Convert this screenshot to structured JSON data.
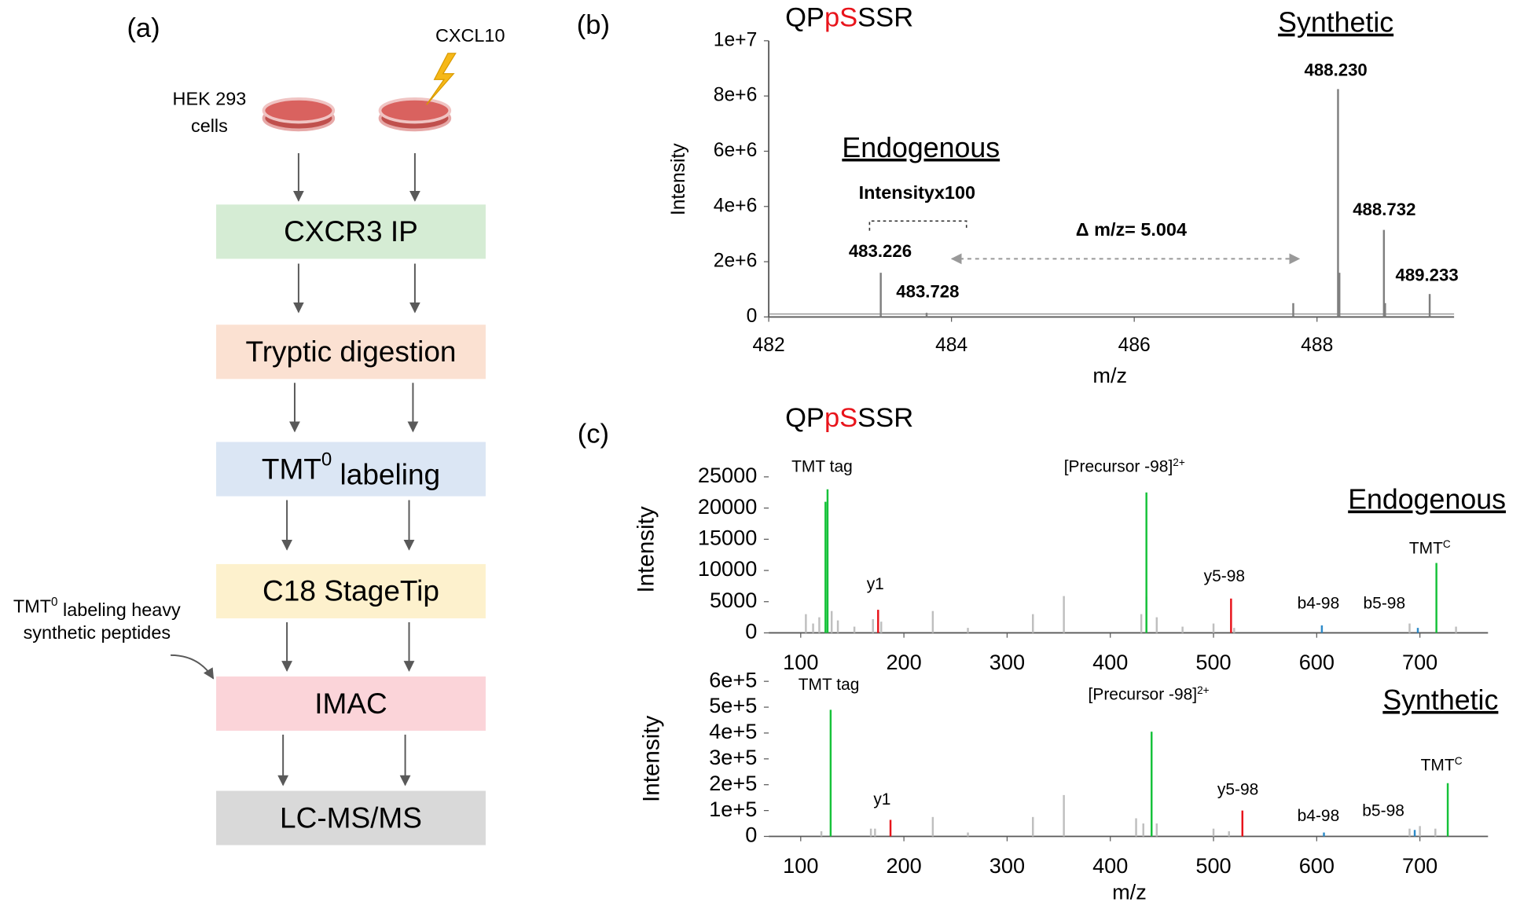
{
  "panel_a": {
    "label": "(a)",
    "cells_label": [
      "HEK 293",
      "cells"
    ],
    "stimulus": "CXCL10",
    "steps": [
      "CXCR3 IP",
      "Tryptic digestion",
      {
        "text": "TMT",
        "sup": "0",
        "rest": " labeling"
      },
      "C18 StageTip",
      "IMAC",
      "LC-MS/MS"
    ],
    "step_colors": [
      "#d5ecd4",
      "#fbe1d2",
      "#dbe6f4",
      "#fdf1cd",
      "#fbd4d9",
      "#d9d9d9"
    ],
    "note": [
      {
        "text": "TMT",
        "sup": "0",
        "rest": " labeling heavy"
      },
      "synthetic peptides"
    ]
  },
  "chart_data": [
    {
      "type": "stem",
      "panel_label": "(b)",
      "title": [
        "QP",
        "pS",
        "SSR"
      ],
      "title_colors": [
        "#000000",
        "#e8141b",
        "#000000"
      ],
      "xlabel": "m/z",
      "ylabel": "Intensity",
      "xlim": [
        482,
        489.5
      ],
      "xticks": [
        482,
        484,
        486,
        488
      ],
      "ylim": [
        0,
        10000000
      ],
      "yticks": [
        0,
        {
          "value": 2000000,
          "label": "2e+6"
        },
        {
          "value": 4000000,
          "label": "4e+6"
        },
        {
          "value": 6000000,
          "label": "6e+6"
        },
        {
          "value": 8000000,
          "label": "8e+6"
        },
        {
          "value": 10000000,
          "label": "1e+7"
        }
      ],
      "series": [
        {
          "color": "#7f7f7f",
          "x": [
            483.226,
            483.728,
            487.74,
            488.23,
            488.245,
            488.732,
            488.745,
            489.233
          ],
          "values": [
            1600000,
            150000,
            500000,
            8250000,
            1600000,
            3150000,
            500000,
            830000
          ],
          "x_labels": [
            "483.226",
            "483.728",
            null,
            "488.230",
            null,
            "488.732",
            null,
            "489.233"
          ]
        }
      ],
      "annotations": [
        "Endogenous",
        "Synthetic",
        "Intensityx100",
        "Δ m/z= 5.004"
      ]
    },
    {
      "type": "stem",
      "panel_label": "(c)",
      "title": [
        "QP",
        "pS",
        "SSR"
      ],
      "title_colors": [
        "#000000",
        "#e8141b",
        "#000000"
      ],
      "ylabel": "Intensity",
      "xlim": [
        69,
        766
      ],
      "xticks": [
        100,
        200,
        300,
        400,
        500,
        600,
        700
      ],
      "ylim": [
        0,
        25000
      ],
      "yticks": [
        0,
        5000,
        10000,
        15000,
        20000,
        25000
      ],
      "series": [
        {
          "color": "#bfbfbf",
          "x": [
            105,
            112,
            118,
            130,
            136,
            152,
            170,
            178,
            228,
            262,
            325,
            355,
            430,
            435,
            445,
            470,
            500,
            520,
            690,
            735
          ],
          "values": [
            3000,
            1500,
            2500,
            3500,
            2000,
            1000,
            2200,
            1800,
            3500,
            800,
            3000,
            5900,
            3000,
            5800,
            2500,
            1000,
            1500,
            800,
            1500,
            1000
          ]
        },
        {
          "color": "#16c23a",
          "x": [
            124,
            126,
            435,
            716
          ],
          "values": [
            21000,
            23000,
            22500,
            11200
          ]
        },
        {
          "color": "#e8141b",
          "x": [
            175,
            517
          ],
          "values": [
            3700,
            5500
          ]
        },
        {
          "color": "#2e8bc9",
          "x": [
            605,
            698
          ],
          "values": [
            1200,
            800
          ]
        }
      ],
      "annotations": [
        "TMT tag",
        {
          "text": "[Precursor -98]",
          "sup": "2+"
        },
        "y1",
        "y5-98",
        "b4-98",
        "b5-98",
        {
          "text": "TMT",
          "sup": "C"
        },
        "Endogenous"
      ]
    },
    {
      "type": "stem",
      "xlabel": "m/z",
      "ylabel": "Intensity",
      "xlim": [
        69,
        766
      ],
      "xticks": [
        100,
        200,
        300,
        400,
        500,
        600,
        700
      ],
      "ylim": [
        0,
        600000
      ],
      "yticks": [
        0,
        {
          "value": 100000,
          "label": "1e+5"
        },
        {
          "value": 200000,
          "label": "2e+5"
        },
        {
          "value": 300000,
          "label": "3e+5"
        },
        {
          "value": 400000,
          "label": "4e+5"
        },
        {
          "value": 500000,
          "label": "5e+5"
        },
        {
          "value": 600000,
          "label": "6e+5"
        }
      ],
      "series": [
        {
          "color": "#bfbfbf",
          "x": [
            120,
            168,
            172,
            228,
            262,
            325,
            355,
            425,
            432,
            440,
            445,
            500,
            515,
            690,
            700,
            715
          ],
          "values": [
            20000,
            30000,
            30000,
            75000,
            15000,
            75000,
            160000,
            70000,
            50000,
            30000,
            50000,
            30000,
            20000,
            30000,
            40000,
            30000
          ]
        },
        {
          "color": "#16c23a",
          "x": [
            129,
            440,
            727
          ],
          "values": [
            490000,
            405000,
            206000
          ]
        },
        {
          "color": "#e8141b",
          "x": [
            187,
            528
          ],
          "values": [
            64000,
            100000
          ]
        },
        {
          "color": "#2e8bc9",
          "x": [
            607,
            695
          ],
          "values": [
            15000,
            25000
          ]
        }
      ],
      "annotations": [
        "TMT tag",
        {
          "text": "[Precursor -98]",
          "sup": "2+"
        },
        "y1",
        "y5-98",
        "b4-98",
        "b5-98",
        {
          "text": "TMT",
          "sup": "C"
        },
        "Synthetic"
      ]
    }
  ]
}
